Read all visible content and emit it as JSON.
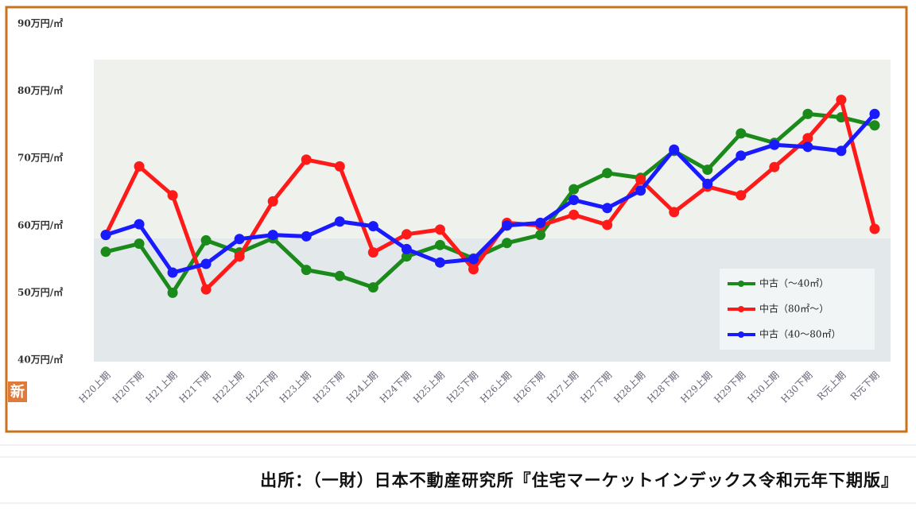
{
  "chart_data": {
    "type": "line",
    "badge": "新",
    "source": "出所：（一財）日本不動産研究所『住宅マーケットインデックス令和元年下期版』",
    "categories": [
      "H20上期",
      "H20下期",
      "H21上期",
      "H21下期",
      "H22上期",
      "H22下期",
      "H23上期",
      "H23下期",
      "H24上期",
      "H24下期",
      "H25上期",
      "H25下期",
      "H26上期",
      "H26下期",
      "H27上期",
      "H27下期",
      "H28上期",
      "H28下期",
      "H29上期",
      "H29下期",
      "H30上期",
      "H30下期",
      "R元上期",
      "R元下期"
    ],
    "series": [
      {
        "name": "中古（～40㎡）",
        "color": "#1a8a1a",
        "values": [
          56.1,
          57.3,
          50.0,
          57.8,
          56.0,
          58.1,
          53.4,
          52.5,
          50.8,
          55.4,
          57.1,
          55.1,
          57.4,
          58.6,
          65.4,
          67.8,
          67.1,
          71.1,
          68.3,
          73.7,
          72.3,
          76.6,
          76.1,
          74.9
        ]
      },
      {
        "name": "中古（80㎡～）",
        "color": "#ff1a1a",
        "values": [
          58.6,
          68.8,
          64.5,
          50.5,
          55.4,
          63.6,
          69.8,
          68.8,
          56.0,
          58.7,
          59.4,
          53.5,
          60.4,
          60.0,
          61.6,
          60.1,
          66.8,
          62.0,
          65.8,
          64.5,
          68.7,
          73.0,
          78.7,
          59.5
        ]
      },
      {
        "name": "中古（40～80㎡）",
        "color": "#1a1aff",
        "values": [
          58.6,
          60.2,
          53.0,
          54.3,
          58.0,
          58.6,
          58.4,
          60.6,
          59.9,
          56.5,
          54.5,
          55.0,
          60.0,
          60.4,
          63.8,
          62.6,
          65.2,
          71.3,
          66.2,
          70.4,
          72.0,
          71.7,
          71.1,
          76.6
        ]
      }
    ],
    "ylim": [
      40,
      90
    ],
    "yticks": [
      {
        "value": 40,
        "label": "40万円/㎡"
      },
      {
        "value": 50,
        "label": "50万円/㎡"
      },
      {
        "value": 60,
        "label": "60万円/㎡"
      },
      {
        "value": 70,
        "label": "70万円/㎡"
      },
      {
        "value": 80,
        "label": "80万円/㎡"
      },
      {
        "value": 90,
        "label": "90万円/㎡"
      }
    ],
    "grid": false
  }
}
